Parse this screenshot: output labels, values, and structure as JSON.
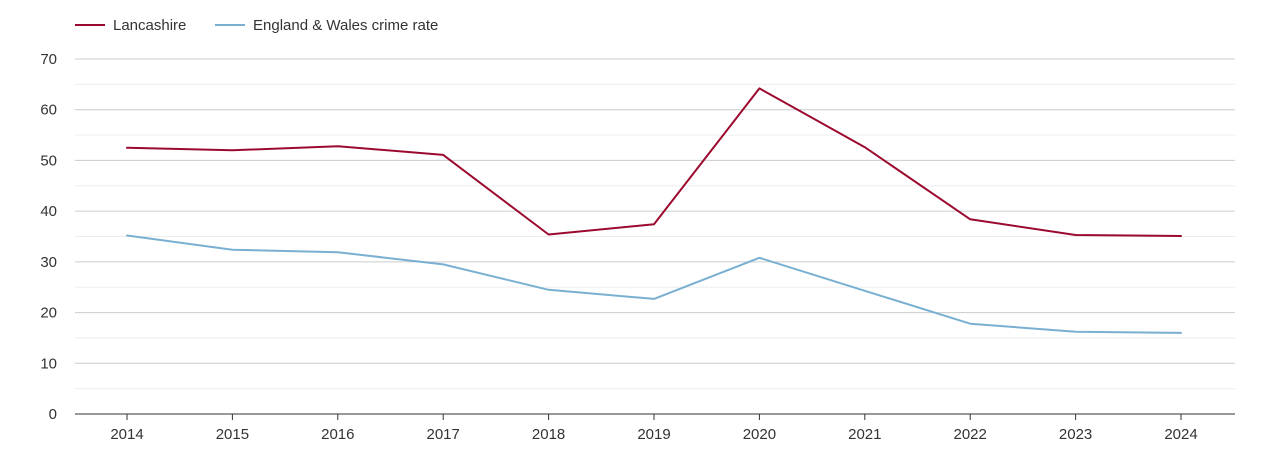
{
  "chart_data": {
    "type": "line",
    "title": "",
    "xlabel": "",
    "ylabel": "",
    "categories": [
      "2014",
      "2015",
      "2016",
      "2017",
      "2018",
      "2019",
      "2020",
      "2021",
      "2022",
      "2023",
      "2024"
    ],
    "ylim": [
      0,
      70
    ],
    "yticks": [
      0,
      10,
      20,
      30,
      40,
      50,
      60,
      70
    ],
    "grid": true,
    "legend_position": "top-left",
    "series": [
      {
        "name": "Lancashire",
        "color": "#9b0a2e",
        "values": [
          52.5,
          52.0,
          52.8,
          51.1,
          35.4,
          37.4,
          64.2,
          52.6,
          38.4,
          35.3,
          35.1
        ]
      },
      {
        "name": "England & Wales crime rate",
        "color": "#79b0d2",
        "values": [
          35.2,
          32.4,
          31.9,
          29.5,
          24.5,
          22.7,
          30.8,
          24.3,
          17.8,
          16.2,
          16.0
        ]
      }
    ]
  }
}
